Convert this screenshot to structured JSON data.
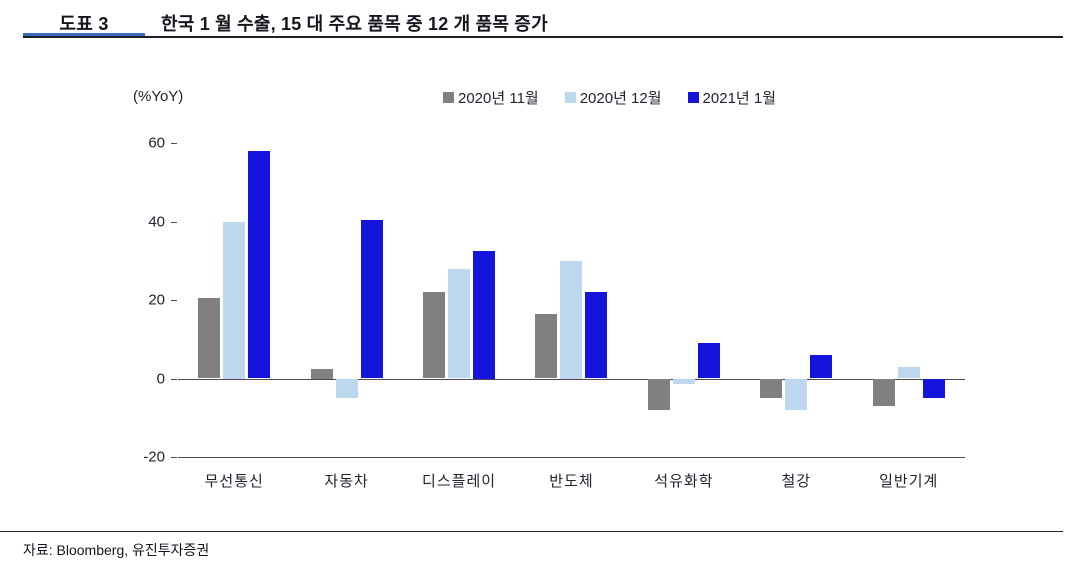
{
  "header": {
    "figure_label": "도표 3",
    "title": "한국 1 월 수출, 15 대 주요 품목 중 12 개 품목 증가"
  },
  "footer": {
    "source": "자료: Bloomberg, 유진투자증권"
  },
  "colors": {
    "accent_underline": "#3a6ab8",
    "header_rule": "#1e1e2a",
    "footer_rule": "#222230",
    "axis_line": "#4a4a52"
  },
  "chart_data": {
    "type": "bar",
    "unit_label": "(%YoY)",
    "categories": [
      "무선통신",
      "자동차",
      "디스플레이",
      "반도체",
      "석유화학",
      "철강",
      "일반기계"
    ],
    "series": [
      {
        "name": "2020년 11월",
        "color": "#808080",
        "values": [
          20.5,
          2.5,
          22,
          16.5,
          -8,
          -5,
          -7
        ]
      },
      {
        "name": "2020년 12월",
        "color": "#BDD7EE",
        "values": [
          40,
          -5,
          28,
          30,
          -1.5,
          -8,
          3
        ]
      },
      {
        "name": "2021년 1월",
        "color": "#1414DC",
        "values": [
          58,
          40.5,
          32.5,
          22,
          9,
          6,
          -5
        ]
      }
    ],
    "ylim": [
      -20,
      60
    ],
    "yticks": [
      60,
      40,
      20,
      0,
      -20
    ],
    "legend_position": "top-center",
    "grid": false
  }
}
